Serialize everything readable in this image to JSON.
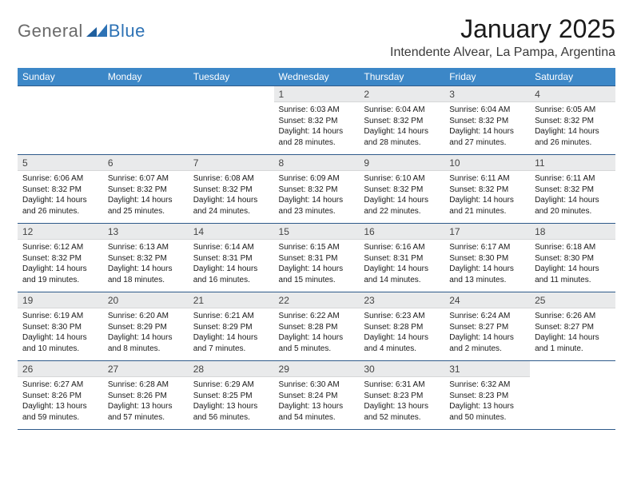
{
  "brand": {
    "part1": "General",
    "part2": "Blue"
  },
  "title": "January 2025",
  "location": "Intendente Alvear, La Pampa, Argentina",
  "colors": {
    "header_bg": "#3c87c7",
    "header_text": "#ffffff",
    "daynum_bg": "#e9eaeb",
    "rule": "#2e5a8a",
    "logo_gray": "#6a6a6a",
    "logo_blue": "#2d72b5",
    "page_bg": "#ffffff"
  },
  "weekdays": [
    "Sunday",
    "Monday",
    "Tuesday",
    "Wednesday",
    "Thursday",
    "Friday",
    "Saturday"
  ],
  "layout": {
    "leading_blanks": 3,
    "days_in_month": 31,
    "columns": 7
  },
  "typography": {
    "title_pt": 32,
    "location_pt": 16,
    "weekday_pt": 12,
    "daynum_pt": 12,
    "body_pt": 10
  },
  "days": [
    {
      "n": 1,
      "sunrise": "6:03 AM",
      "sunset": "8:32 PM",
      "daylight": "14 hours and 28 minutes."
    },
    {
      "n": 2,
      "sunrise": "6:04 AM",
      "sunset": "8:32 PM",
      "daylight": "14 hours and 28 minutes."
    },
    {
      "n": 3,
      "sunrise": "6:04 AM",
      "sunset": "8:32 PM",
      "daylight": "14 hours and 27 minutes."
    },
    {
      "n": 4,
      "sunrise": "6:05 AM",
      "sunset": "8:32 PM",
      "daylight": "14 hours and 26 minutes."
    },
    {
      "n": 5,
      "sunrise": "6:06 AM",
      "sunset": "8:32 PM",
      "daylight": "14 hours and 26 minutes."
    },
    {
      "n": 6,
      "sunrise": "6:07 AM",
      "sunset": "8:32 PM",
      "daylight": "14 hours and 25 minutes."
    },
    {
      "n": 7,
      "sunrise": "6:08 AM",
      "sunset": "8:32 PM",
      "daylight": "14 hours and 24 minutes."
    },
    {
      "n": 8,
      "sunrise": "6:09 AM",
      "sunset": "8:32 PM",
      "daylight": "14 hours and 23 minutes."
    },
    {
      "n": 9,
      "sunrise": "6:10 AM",
      "sunset": "8:32 PM",
      "daylight": "14 hours and 22 minutes."
    },
    {
      "n": 10,
      "sunrise": "6:11 AM",
      "sunset": "8:32 PM",
      "daylight": "14 hours and 21 minutes."
    },
    {
      "n": 11,
      "sunrise": "6:11 AM",
      "sunset": "8:32 PM",
      "daylight": "14 hours and 20 minutes."
    },
    {
      "n": 12,
      "sunrise": "6:12 AM",
      "sunset": "8:32 PM",
      "daylight": "14 hours and 19 minutes."
    },
    {
      "n": 13,
      "sunrise": "6:13 AM",
      "sunset": "8:32 PM",
      "daylight": "14 hours and 18 minutes."
    },
    {
      "n": 14,
      "sunrise": "6:14 AM",
      "sunset": "8:31 PM",
      "daylight": "14 hours and 16 minutes."
    },
    {
      "n": 15,
      "sunrise": "6:15 AM",
      "sunset": "8:31 PM",
      "daylight": "14 hours and 15 minutes."
    },
    {
      "n": 16,
      "sunrise": "6:16 AM",
      "sunset": "8:31 PM",
      "daylight": "14 hours and 14 minutes."
    },
    {
      "n": 17,
      "sunrise": "6:17 AM",
      "sunset": "8:30 PM",
      "daylight": "14 hours and 13 minutes."
    },
    {
      "n": 18,
      "sunrise": "6:18 AM",
      "sunset": "8:30 PM",
      "daylight": "14 hours and 11 minutes."
    },
    {
      "n": 19,
      "sunrise": "6:19 AM",
      "sunset": "8:30 PM",
      "daylight": "14 hours and 10 minutes."
    },
    {
      "n": 20,
      "sunrise": "6:20 AM",
      "sunset": "8:29 PM",
      "daylight": "14 hours and 8 minutes."
    },
    {
      "n": 21,
      "sunrise": "6:21 AM",
      "sunset": "8:29 PM",
      "daylight": "14 hours and 7 minutes."
    },
    {
      "n": 22,
      "sunrise": "6:22 AM",
      "sunset": "8:28 PM",
      "daylight": "14 hours and 5 minutes."
    },
    {
      "n": 23,
      "sunrise": "6:23 AM",
      "sunset": "8:28 PM",
      "daylight": "14 hours and 4 minutes."
    },
    {
      "n": 24,
      "sunrise": "6:24 AM",
      "sunset": "8:27 PM",
      "daylight": "14 hours and 2 minutes."
    },
    {
      "n": 25,
      "sunrise": "6:26 AM",
      "sunset": "8:27 PM",
      "daylight": "14 hours and 1 minute."
    },
    {
      "n": 26,
      "sunrise": "6:27 AM",
      "sunset": "8:26 PM",
      "daylight": "13 hours and 59 minutes."
    },
    {
      "n": 27,
      "sunrise": "6:28 AM",
      "sunset": "8:26 PM",
      "daylight": "13 hours and 57 minutes."
    },
    {
      "n": 28,
      "sunrise": "6:29 AM",
      "sunset": "8:25 PM",
      "daylight": "13 hours and 56 minutes."
    },
    {
      "n": 29,
      "sunrise": "6:30 AM",
      "sunset": "8:24 PM",
      "daylight": "13 hours and 54 minutes."
    },
    {
      "n": 30,
      "sunrise": "6:31 AM",
      "sunset": "8:23 PM",
      "daylight": "13 hours and 52 minutes."
    },
    {
      "n": 31,
      "sunrise": "6:32 AM",
      "sunset": "8:23 PM",
      "daylight": "13 hours and 50 minutes."
    }
  ],
  "labels": {
    "sunrise": "Sunrise:",
    "sunset": "Sunset:",
    "daylight": "Daylight:"
  }
}
